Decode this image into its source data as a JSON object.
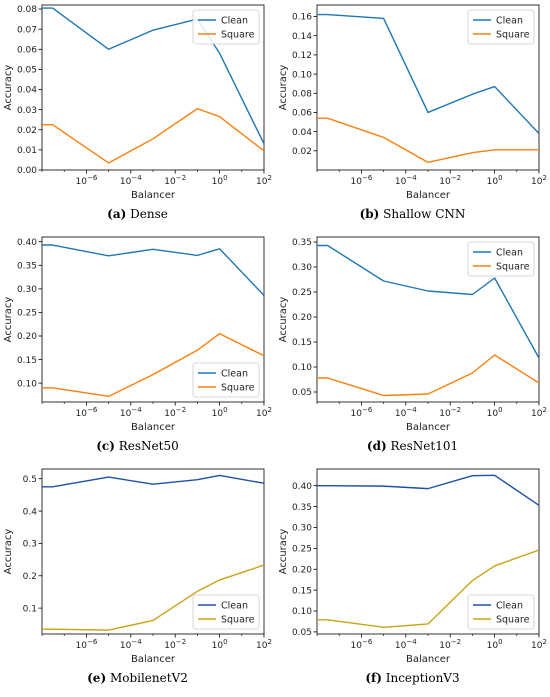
{
  "chart_data": [
    {
      "type": "line",
      "caption_letter": "(a)",
      "caption_text": "Dense",
      "xlabel": "Balancer",
      "ylabel": "Accuracy",
      "x_scale": "log",
      "xlim": [
        1e-08,
        100.0
      ],
      "ylim": [
        0.0,
        0.082
      ],
      "xticks": [
        1e-06,
        0.0001,
        0.01,
        1.0,
        100.0
      ],
      "xtick_labels": [
        [
          "10",
          "−6"
        ],
        [
          "10",
          "−4"
        ],
        [
          "10",
          "−2"
        ],
        [
          "10",
          "0"
        ],
        [
          "10",
          "2"
        ]
      ],
      "yticks": [
        0.0,
        0.01,
        0.02,
        0.03,
        0.04,
        0.05,
        0.06,
        0.07,
        0.08
      ],
      "ytick_labels": [
        "0.00",
        "0.01",
        "0.02",
        "0.03",
        "0.04",
        "0.05",
        "0.06",
        "0.07",
        "0.08"
      ],
      "legend_position": "upper right",
      "x": [
        1e-08,
        3e-08,
        1e-05,
        0.001,
        0.1,
        1.0,
        100.0
      ],
      "series": [
        {
          "name": "Clean",
          "color": "#1f77b4",
          "values": [
            0.0805,
            0.0805,
            0.06,
            0.0695,
            0.075,
            0.058,
            0.013
          ]
        },
        {
          "name": "Square",
          "color": "#ff7f0e",
          "values": [
            0.0225,
            0.0225,
            0.0035,
            0.0155,
            0.0305,
            0.0265,
            0.0095
          ]
        }
      ]
    },
    {
      "type": "line",
      "caption_letter": "(b)",
      "caption_text": "Shallow CNN",
      "xlabel": "Balancer",
      "ylabel": "Accuracy",
      "x_scale": "log",
      "xlim": [
        1e-08,
        100.0
      ],
      "ylim": [
        0.0,
        0.172
      ],
      "xticks": [
        1e-06,
        0.0001,
        0.01,
        1.0,
        100.0
      ],
      "xtick_labels": [
        [
          "10",
          "−6"
        ],
        [
          "10",
          "−4"
        ],
        [
          "10",
          "−2"
        ],
        [
          "10",
          "0"
        ],
        [
          "10",
          "2"
        ]
      ],
      "yticks": [
        0.02,
        0.04,
        0.06,
        0.08,
        0.1,
        0.12,
        0.14,
        0.16
      ],
      "ytick_labels": [
        "0.02",
        "0.04",
        "0.06",
        "0.08",
        "0.10",
        "0.12",
        "0.14",
        "0.16"
      ],
      "legend_position": "upper right",
      "x": [
        1e-08,
        3e-08,
        1e-05,
        0.001,
        0.1,
        1.0,
        100.0
      ],
      "series": [
        {
          "name": "Clean",
          "color": "#1f77b4",
          "values": [
            0.162,
            0.162,
            0.158,
            0.06,
            0.079,
            0.087,
            0.038
          ]
        },
        {
          "name": "Square",
          "color": "#ff7f0e",
          "values": [
            0.054,
            0.054,
            0.034,
            0.008,
            0.018,
            0.021,
            0.021
          ]
        }
      ]
    },
    {
      "type": "line",
      "caption_letter": "(c)",
      "caption_text": "ResNet50",
      "xlabel": "Balancer",
      "ylabel": "Accuracy",
      "x_scale": "log",
      "xlim": [
        1e-08,
        100.0
      ],
      "ylim": [
        0.06,
        0.41
      ],
      "xticks": [
        1e-06,
        0.0001,
        0.01,
        1.0,
        100.0
      ],
      "xtick_labels": [
        [
          "10",
          "−6"
        ],
        [
          "10",
          "−4"
        ],
        [
          "10",
          "−2"
        ],
        [
          "10",
          "0"
        ],
        [
          "10",
          "2"
        ]
      ],
      "yticks": [
        0.1,
        0.15,
        0.2,
        0.25,
        0.3,
        0.35,
        0.4
      ],
      "ytick_labels": [
        "0.10",
        "0.15",
        "0.20",
        "0.25",
        "0.30",
        "0.35",
        "0.40"
      ],
      "legend_position": "lower right",
      "x": [
        1e-08,
        3e-08,
        1e-05,
        0.001,
        0.1,
        1.0,
        100.0
      ],
      "series": [
        {
          "name": "Clean",
          "color": "#1f77b4",
          "values": [
            0.393,
            0.393,
            0.37,
            0.384,
            0.371,
            0.385,
            0.286
          ]
        },
        {
          "name": "Square",
          "color": "#ff7f0e",
          "values": [
            0.09,
            0.09,
            0.072,
            0.118,
            0.17,
            0.205,
            0.158
          ]
        }
      ]
    },
    {
      "type": "line",
      "caption_letter": "(d)",
      "caption_text": "ResNet101",
      "xlabel": "Balancer",
      "ylabel": "Accuracy",
      "x_scale": "log",
      "xlim": [
        1e-08,
        100.0
      ],
      "ylim": [
        0.03,
        0.36
      ],
      "xticks": [
        1e-06,
        0.0001,
        0.01,
        1.0,
        100.0
      ],
      "xtick_labels": [
        [
          "10",
          "−6"
        ],
        [
          "10",
          "−4"
        ],
        [
          "10",
          "−2"
        ],
        [
          "10",
          "0"
        ],
        [
          "10",
          "2"
        ]
      ],
      "yticks": [
        0.05,
        0.1,
        0.15,
        0.2,
        0.25,
        0.3,
        0.35
      ],
      "ytick_labels": [
        "0.05",
        "0.10",
        "0.15",
        "0.20",
        "0.25",
        "0.30",
        "0.35"
      ],
      "legend_position": "upper right",
      "x": [
        1e-08,
        3e-08,
        1e-05,
        0.001,
        0.1,
        1.0,
        100.0
      ],
      "series": [
        {
          "name": "Clean",
          "color": "#1f77b4",
          "values": [
            0.343,
            0.343,
            0.272,
            0.252,
            0.245,
            0.278,
            0.118
          ]
        },
        {
          "name": "Square",
          "color": "#ff7f0e",
          "values": [
            0.078,
            0.078,
            0.043,
            0.046,
            0.088,
            0.124,
            0.068
          ]
        }
      ]
    },
    {
      "type": "line",
      "caption_letter": "(e)",
      "caption_text": "MobilenetV2",
      "xlabel": "Balancer",
      "ylabel": "Accuracy",
      "x_scale": "log",
      "xlim": [
        1e-08,
        100.0
      ],
      "ylim": [
        0.02,
        0.53
      ],
      "xticks": [
        1e-06,
        0.0001,
        0.01,
        1.0,
        100.0
      ],
      "xtick_labels": [
        [
          "10",
          "−6"
        ],
        [
          "10",
          "−4"
        ],
        [
          "10",
          "−2"
        ],
        [
          "10",
          "0"
        ],
        [
          "10",
          "2"
        ]
      ],
      "yticks": [
        0.1,
        0.2,
        0.3,
        0.4,
        0.5
      ],
      "ytick_labels": [
        "0.1",
        "0.2",
        "0.3",
        "0.4",
        "0.5"
      ],
      "legend_position": "lower right",
      "x": [
        1e-08,
        3e-08,
        1e-05,
        0.001,
        0.1,
        1.0,
        100.0
      ],
      "series": [
        {
          "name": "Clean",
          "color": "#1f4fa8",
          "values": [
            0.475,
            0.475,
            0.505,
            0.483,
            0.497,
            0.51,
            0.486
          ]
        },
        {
          "name": "Square",
          "color": "#c8a414",
          "values": [
            0.035,
            0.035,
            0.032,
            0.062,
            0.152,
            0.187,
            0.233
          ]
        }
      ]
    },
    {
      "type": "line",
      "caption_letter": "(f)",
      "caption_text": "InceptionV3",
      "xlabel": "Balancer",
      "ylabel": "Accuracy",
      "x_scale": "log",
      "xlim": [
        1e-08,
        100.0
      ],
      "ylim": [
        0.045,
        0.44
      ],
      "xticks": [
        1e-06,
        0.0001,
        0.01,
        1.0,
        100.0
      ],
      "xtick_labels": [
        [
          "10",
          "−6"
        ],
        [
          "10",
          "−4"
        ],
        [
          "10",
          "−2"
        ],
        [
          "10",
          "0"
        ],
        [
          "10",
          "2"
        ]
      ],
      "yticks": [
        0.05,
        0.1,
        0.15,
        0.2,
        0.25,
        0.3,
        0.35,
        0.4
      ],
      "ytick_labels": [
        "0.05",
        "0.10",
        "0.15",
        "0.20",
        "0.25",
        "0.30",
        "0.35",
        "0.40"
      ],
      "legend_position": "lower right",
      "x": [
        1e-08,
        3e-08,
        1e-05,
        0.001,
        0.1,
        1.0,
        100.0
      ],
      "series": [
        {
          "name": "Clean",
          "color": "#1f4fa8",
          "values": [
            0.4,
            0.4,
            0.399,
            0.393,
            0.424,
            0.425,
            0.353
          ]
        },
        {
          "name": "Square",
          "color": "#c8a414",
          "values": [
            0.079,
            0.079,
            0.061,
            0.069,
            0.173,
            0.208,
            0.246
          ]
        }
      ]
    }
  ]
}
